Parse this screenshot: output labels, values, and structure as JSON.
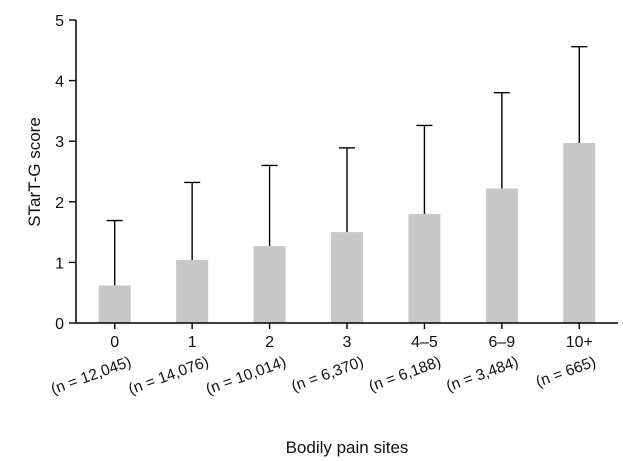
{
  "chart_data": {
    "type": "bar",
    "title": "",
    "xlabel": "Bodily pain sites",
    "ylabel": "STarT-G score",
    "ylim": [
      0,
      5
    ],
    "yticks": [
      "0",
      "1",
      "2",
      "3",
      "4",
      "5"
    ],
    "categories": [
      "0",
      "1",
      "2",
      "3",
      "4–5",
      "6–9",
      "10+"
    ],
    "sample_sizes": [
      "(n = 12,045)",
      "(n = 14,076)",
      "(n = 10,014)",
      "(n = 6,370)",
      "(n = 6,188)",
      "(n = 3,484)",
      "(n = 665)"
    ],
    "values": [
      0.62,
      1.04,
      1.27,
      1.5,
      1.8,
      2.22,
      2.97
    ],
    "error_upper": [
      1.69,
      2.32,
      2.6,
      2.89,
      3.26,
      3.8,
      4.56
    ],
    "grid": false,
    "legend": "none",
    "bar_color": "#c8c8c8",
    "axis_color": "#000000"
  }
}
